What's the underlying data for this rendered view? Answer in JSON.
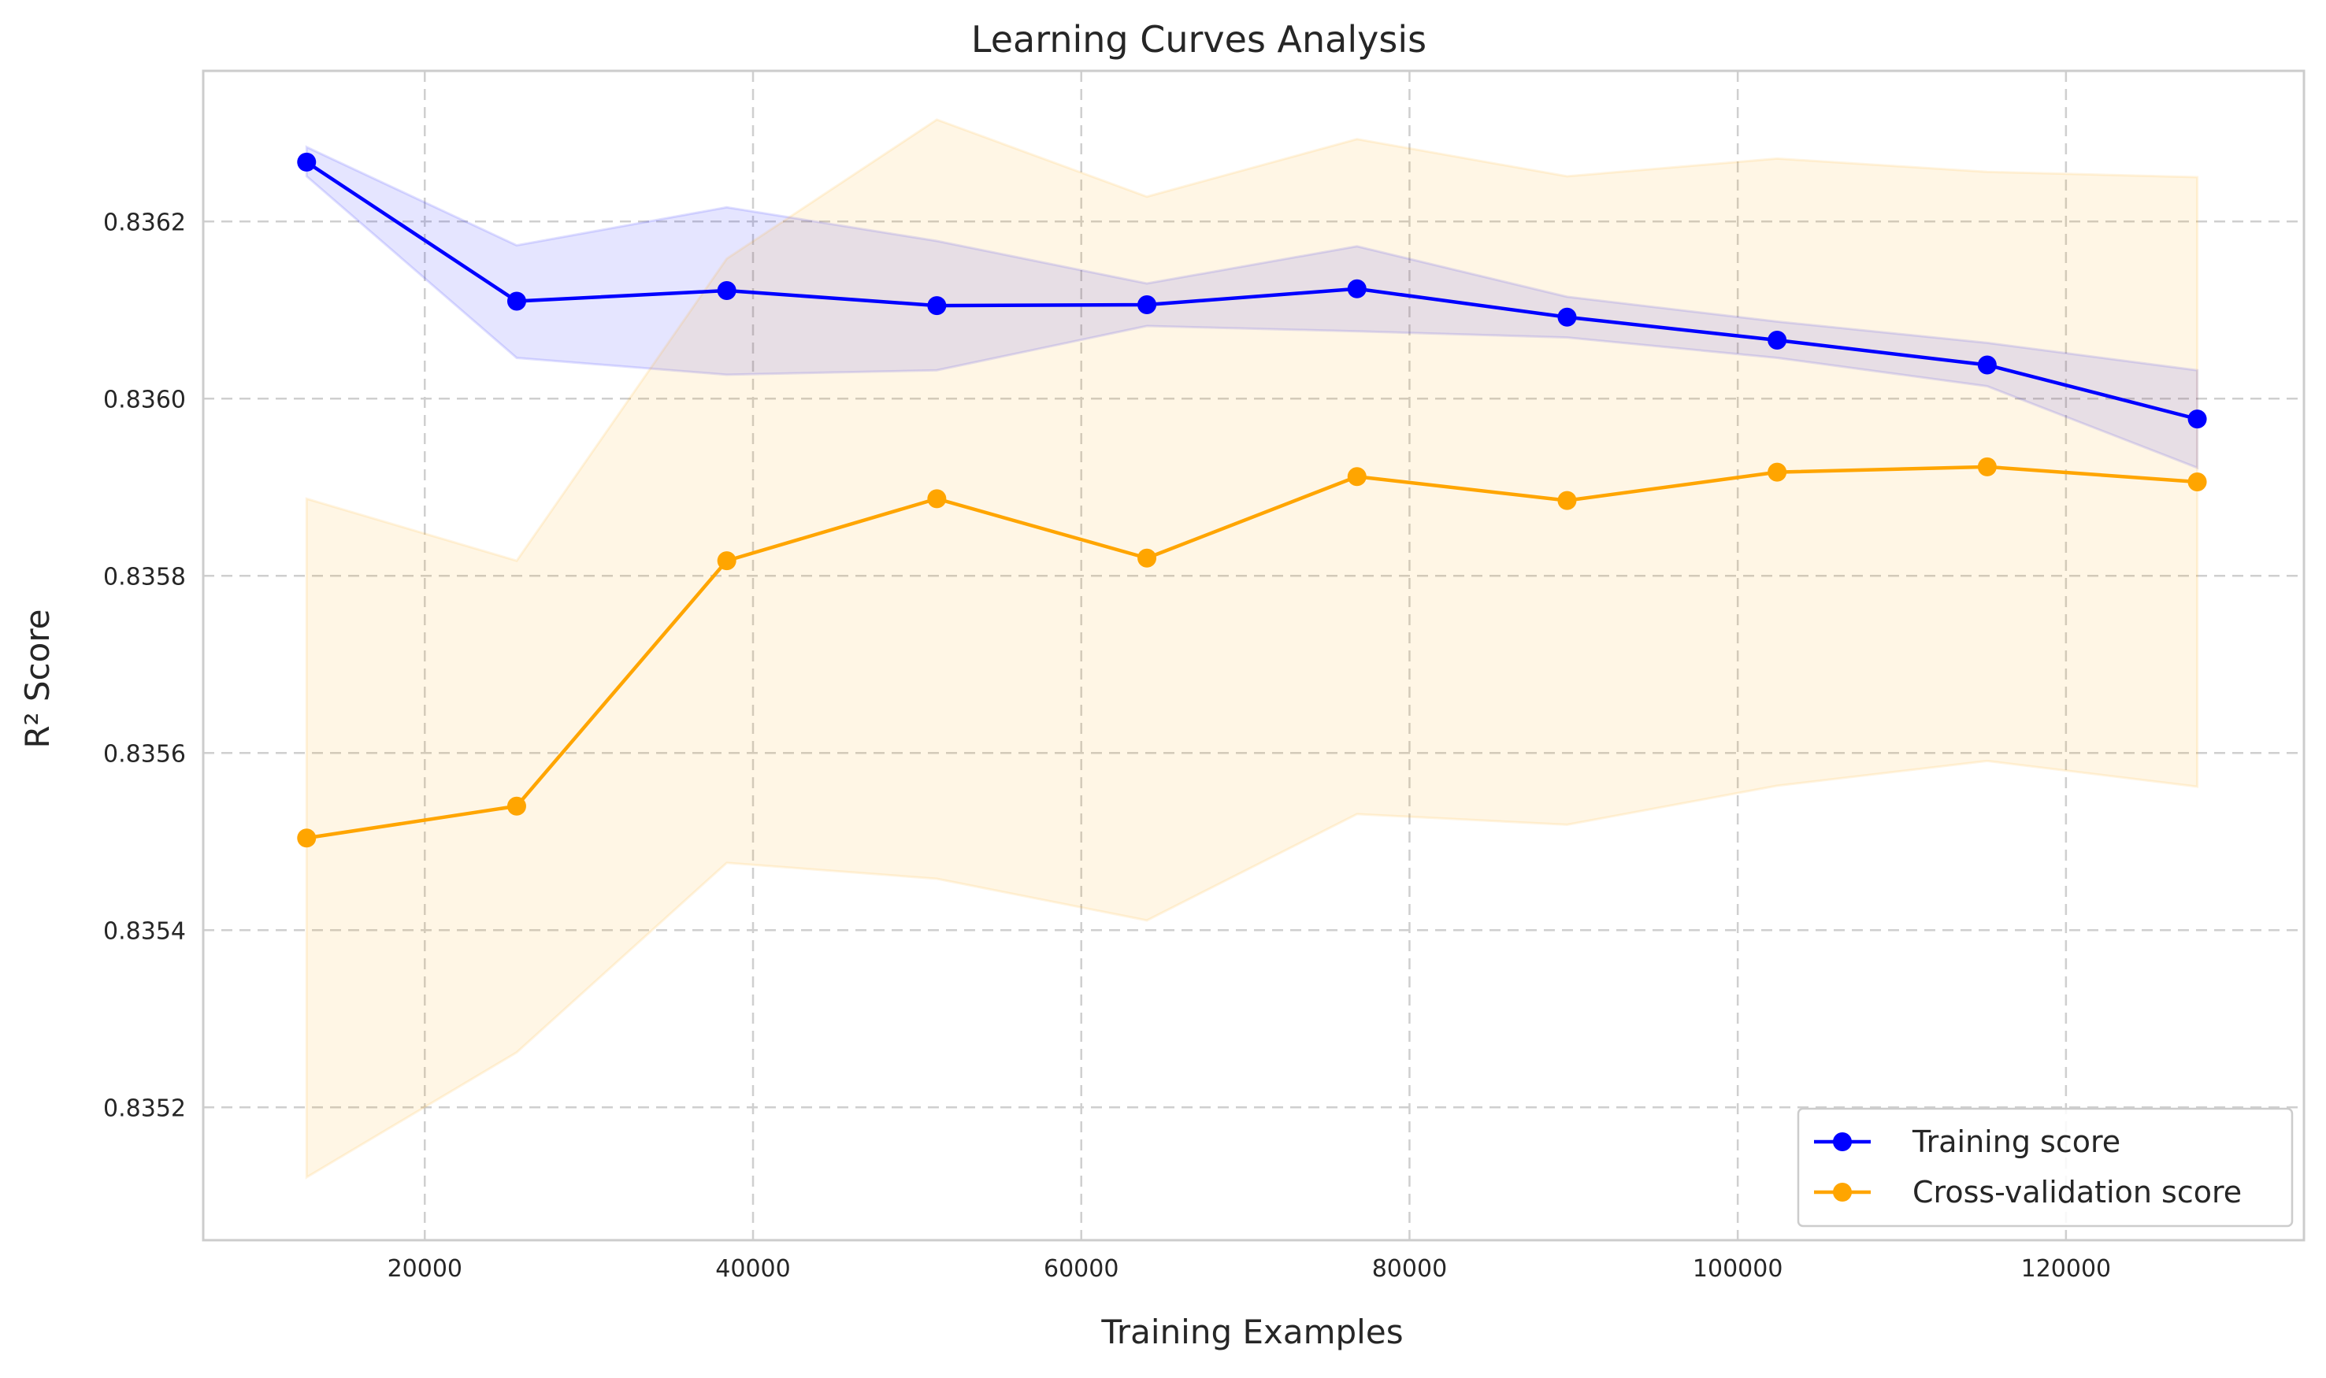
{
  "chart_data": {
    "type": "line",
    "title": "Learning Curves Analysis",
    "xlabel": "Training Examples",
    "ylabel": "R² Score",
    "xlim": [
      6500,
      134500
    ],
    "ylim": [
      0.83505,
      0.83637
    ],
    "xticks": [
      20000,
      40000,
      60000,
      80000,
      100000,
      120000
    ],
    "yticks": [
      0.8352,
      0.8354,
      0.8356,
      0.8358,
      0.836,
      0.8362
    ],
    "grid": true,
    "legend_position": "lower-right",
    "x": [
      12800,
      25600,
      38400,
      51200,
      64000,
      76800,
      89600,
      102400,
      115200,
      128000
    ],
    "series": [
      {
        "name": "Training score",
        "color": "#0000ff",
        "band_color": "#0000ff",
        "band_opacity": 0.1,
        "values": [
          0.836267,
          0.83611,
          0.836122,
          0.836105,
          0.836106,
          0.836124,
          0.836092,
          0.836066,
          0.836038,
          0.835977
        ],
        "band_upper": [
          0.836284,
          0.836173,
          0.836216,
          0.836178,
          0.83613,
          0.836172,
          0.836115,
          0.836087,
          0.836063,
          0.836032
        ],
        "band_lower": [
          0.836251,
          0.836046,
          0.836027,
          0.836032,
          0.836082,
          0.836076,
          0.836069,
          0.836046,
          0.836014,
          0.835922
        ]
      },
      {
        "name": "Cross-validation score",
        "color": "#ffa500",
        "band_color": "#ffa500",
        "band_opacity": 0.1,
        "values": [
          0.835504,
          0.83554,
          0.835817,
          0.835887,
          0.83582,
          0.835912,
          0.835885,
          0.835917,
          0.835923,
          0.835906
        ],
        "band_upper": [
          0.835887,
          0.835817,
          0.836158,
          0.836315,
          0.836228,
          0.836293,
          0.836251,
          0.836271,
          0.836256,
          0.83625
        ],
        "band_lower": [
          0.835121,
          0.835262,
          0.835476,
          0.835458,
          0.835411,
          0.835531,
          0.835519,
          0.835563,
          0.835591,
          0.835562
        ]
      }
    ]
  }
}
